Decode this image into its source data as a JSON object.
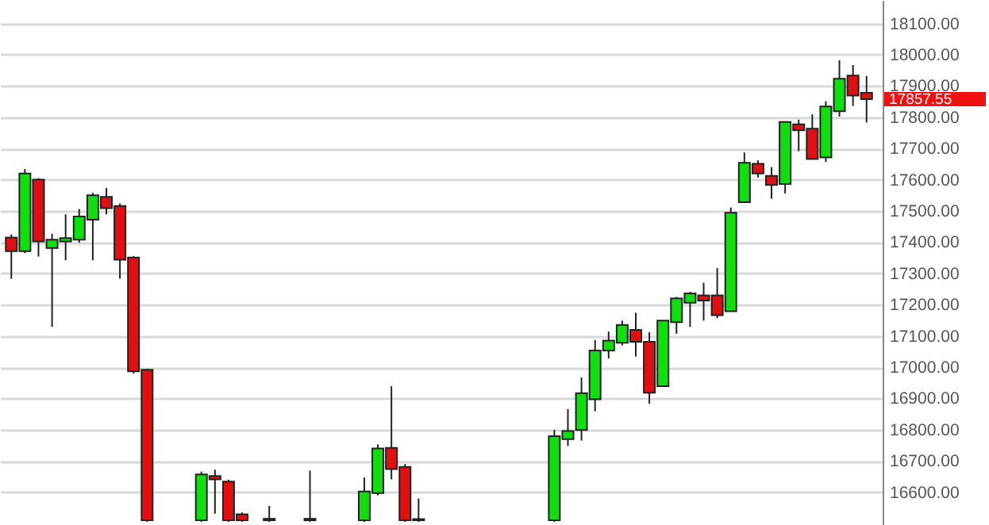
{
  "chart_data": {
    "type": "candlestick",
    "categories": [
      null,
      null,
      null,
      null,
      null,
      null,
      null,
      null,
      null,
      null,
      null,
      null,
      null,
      null,
      null,
      null,
      null,
      null,
      null,
      null,
      null,
      null,
      null,
      null,
      null,
      null,
      null,
      null,
      null,
      null,
      null,
      null,
      null,
      null,
      null,
      null,
      null,
      null,
      null,
      null,
      null,
      null,
      null,
      null,
      null,
      null,
      null,
      null,
      null,
      null,
      null,
      null,
      null,
      null,
      null,
      null,
      null,
      null,
      null,
      null,
      null,
      null,
      null,
      null
    ],
    "ohlc": [
      [
        17415,
        17425,
        17283,
        17371
      ],
      [
        17371,
        17634,
        17365,
        17620
      ],
      [
        17600,
        17605,
        17354,
        17402
      ],
      [
        17381,
        17427,
        17129,
        17408
      ],
      [
        17402,
        17489,
        17342,
        17413
      ],
      [
        17408,
        17506,
        17398,
        17482
      ],
      [
        17472,
        17558,
        17342,
        17550
      ],
      [
        17545,
        17573,
        17489,
        17509
      ],
      [
        17516,
        17524,
        17283,
        17344
      ],
      [
        17351,
        17355,
        16980,
        16987
      ],
      [
        16992,
        16995,
        16505,
        16510
      ],
      null,
      null,
      null,
      [
        16510,
        16666,
        16505,
        16657
      ],
      [
        16652,
        16672,
        16531,
        16641
      ],
      [
        16634,
        16640,
        16505,
        16510
      ],
      [
        16529,
        16535,
        16505,
        16510
      ],
      null,
      [
        16515,
        16556,
        16505,
        16510
      ],
      null,
      null,
      [
        16515,
        16669,
        16505,
        16510
      ],
      null,
      null,
      null,
      [
        16510,
        16647,
        16505,
        16602
      ],
      [
        16597,
        16753,
        16590,
        16740
      ],
      [
        16742,
        16939,
        16641,
        16674
      ],
      [
        16681,
        16690,
        16505,
        16510
      ],
      [
        16510,
        16580,
        16505,
        16514
      ],
      null,
      null,
      null,
      null,
      null,
      null,
      null,
      null,
      null,
      [
        16510,
        16799,
        16505,
        16779
      ],
      [
        16770,
        16866,
        16748,
        16796
      ],
      [
        16799,
        16967,
        16765,
        16917
      ],
      [
        16897,
        17087,
        16859,
        17053
      ],
      [
        17053,
        17114,
        17028,
        17085
      ],
      [
        17078,
        17149,
        17070,
        17135
      ],
      [
        17119,
        17174,
        17034,
        17081
      ],
      [
        17081,
        17112,
        16883,
        16918
      ],
      [
        16939,
        17149,
        16939,
        17149
      ],
      [
        17144,
        17225,
        17107,
        17220
      ],
      [
        17206,
        17241,
        17129,
        17236
      ],
      [
        17230,
        17270,
        17149,
        17213
      ],
      [
        17230,
        17317,
        17157,
        17166
      ],
      [
        17179,
        17511,
        17179,
        17494
      ],
      [
        17528,
        17687,
        17528,
        17654
      ],
      [
        17651,
        17662,
        17607,
        17620
      ],
      [
        17612,
        17640,
        17539,
        17583
      ],
      [
        17586,
        17785,
        17556,
        17785
      ],
      [
        17777,
        17792,
        17691,
        17758
      ],
      [
        17763,
        17809,
        17666,
        17666
      ],
      [
        17671,
        17851,
        17657,
        17834
      ],
      [
        17819,
        17982,
        17802,
        17923
      ],
      [
        17933,
        17967,
        17836,
        17869
      ],
      [
        17878,
        17932,
        17783,
        17857.55
      ]
    ],
    "colors": [
      "#dd1111",
      "#11dd11",
      "#dd1111",
      "#11dd11",
      "#11dd11",
      "#11dd11",
      "#11dd11",
      "#dd1111",
      "#dd1111",
      "#dd1111",
      "#dd1111",
      null,
      null,
      null,
      "#11dd11",
      "#dd1111",
      "#dd1111",
      "#dd1111",
      null,
      "#dd1111",
      null,
      null,
      "#dd1111",
      null,
      null,
      null,
      "#11dd11",
      "#11dd11",
      "#dd1111",
      "#dd1111",
      "#11dd11",
      null,
      null,
      null,
      null,
      null,
      null,
      null,
      null,
      null,
      "#11dd11",
      "#11dd11",
      "#11dd11",
      "#11dd11",
      "#11dd11",
      "#11dd11",
      "#dd1111",
      "#dd1111",
      "#11dd11",
      "#11dd11",
      "#11dd11",
      "#dd1111",
      "#dd1111",
      "#11dd11",
      "#11dd11",
      "#dd1111",
      "#dd1111",
      "#11dd11",
      "#dd1111",
      "#dd1111",
      "#11dd11",
      "#11dd11",
      "#dd1111",
      "#dd1111"
    ],
    "ylim": [
      16495,
      18175
    ],
    "yticks": [
      {
        "value": 16600,
        "label": "16600.00"
      },
      {
        "value": 16700,
        "label": "16700.00"
      },
      {
        "value": 16800,
        "label": "16800.00"
      },
      {
        "value": 16900,
        "label": "16900.00"
      },
      {
        "value": 17000,
        "label": "17000.00"
      },
      {
        "value": 17100,
        "label": "17100.00"
      },
      {
        "value": 17200,
        "label": "17200.00"
      },
      {
        "value": 17300,
        "label": "17300.00"
      },
      {
        "value": 17400,
        "label": "17400.00"
      },
      {
        "value": 17500,
        "label": "17500.00"
      },
      {
        "value": 17600,
        "label": "17600.00"
      },
      {
        "value": 17700,
        "label": "17700.00"
      },
      {
        "value": 17800,
        "label": "17800.00"
      },
      {
        "value": 17900,
        "label": "17900.00"
      },
      {
        "value": 18000,
        "label": "18000.00"
      },
      {
        "value": 18100,
        "label": "18100.00"
      }
    ],
    "grid": "y",
    "tick_labels": "y",
    "annotations": [
      "17857.55"
    ]
  }
}
